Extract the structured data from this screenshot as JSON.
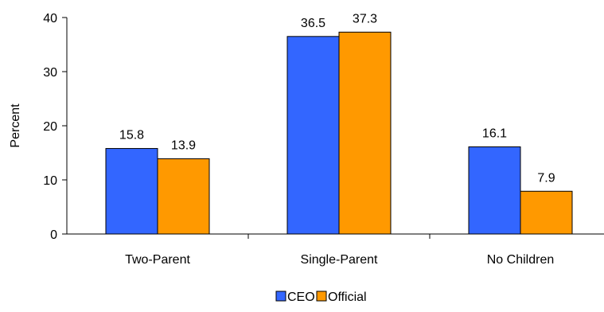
{
  "chart_data": {
    "type": "bar",
    "title": "",
    "xlabel": "",
    "ylabel": "Percent",
    "categories": [
      "Two-Parent",
      "Single-Parent",
      "No Children"
    ],
    "series": [
      {
        "name": "CEO",
        "values": [
          15.8,
          36.5,
          16.1
        ],
        "color": "#3366FF"
      },
      {
        "name": "Official",
        "values": [
          13.9,
          37.3,
          7.9
        ],
        "color": "#FF9900"
      }
    ],
    "data_labels": [
      [
        "15.8",
        "36.5",
        "16.1"
      ],
      [
        "13.9",
        "37.3",
        "7.9"
      ]
    ],
    "ylim": [
      0,
      40
    ],
    "yticks": [
      0,
      10,
      20,
      30,
      40
    ],
    "ytick_labels": [
      "0",
      "10",
      "20",
      "30",
      "40"
    ],
    "grid": false,
    "legend": {
      "position": "bottom-center",
      "entries": [
        "CEO",
        "Official"
      ]
    }
  }
}
